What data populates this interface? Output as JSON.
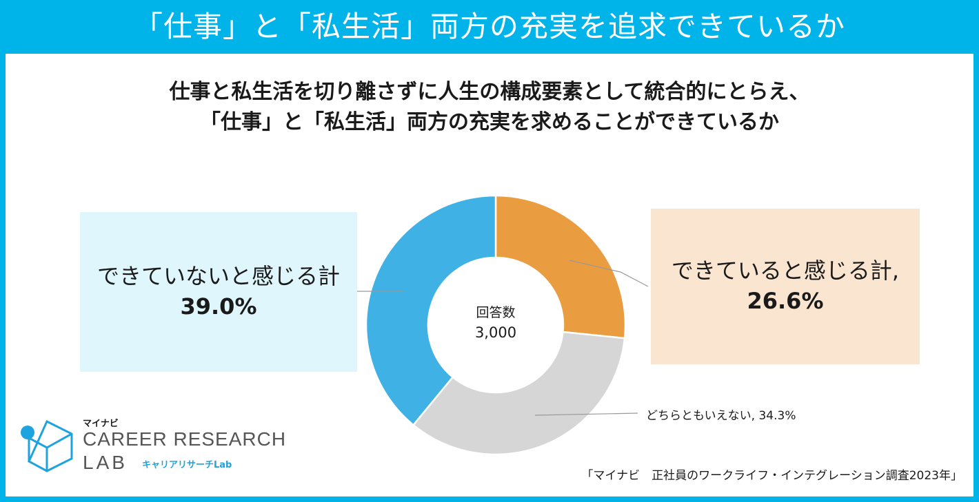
{
  "header": {
    "title": "「仕事」と「私生活」両方の充実を追求できているか"
  },
  "subtitle": {
    "line1": "仕事と私生活を切り離さずに人生の構成要素として統合的にとらえ、",
    "line2": "「仕事」と「私生活」両方の充実を求めることができているか"
  },
  "colors": {
    "header_bg": "#00b4ea",
    "orange": "#e99c40",
    "gray": "#d6d6d6",
    "blue": "#3fb1e5",
    "callout_left_bg": "#e0f6fd",
    "callout_right_bg": "#fae5d0"
  },
  "chart_data": {
    "type": "pie",
    "style": "donut",
    "center_label": "回答数",
    "center_value": "3,000",
    "slices": [
      {
        "label": "できていると感じる計",
        "value": 26.6,
        "display": "26.6%",
        "color": "#e99c40"
      },
      {
        "label": "どちらともいえない",
        "value": 34.3,
        "display": "34.3%",
        "color": "#d6d6d6",
        "label_text": "どちらともいえない, 34.3%"
      },
      {
        "label": "できていないと感じる計",
        "value": 39.0,
        "display": "39.0%",
        "color": "#3fb1e5"
      }
    ],
    "callouts": {
      "left": {
        "label": "できていないと感じる計",
        "value": "39.0%"
      },
      "right": {
        "label": "できていると感じる計,",
        "value": "26.6%"
      }
    }
  },
  "logo": {
    "small": "マイナビ",
    "main": "CAREER RESEARCH",
    "lab": "LAB",
    "kana": "キャリアリサーチLab",
    "icon": "cube-logo-icon"
  },
  "source": "「マイナビ　正社員のワークライフ・インテグレーション調査2023年」"
}
